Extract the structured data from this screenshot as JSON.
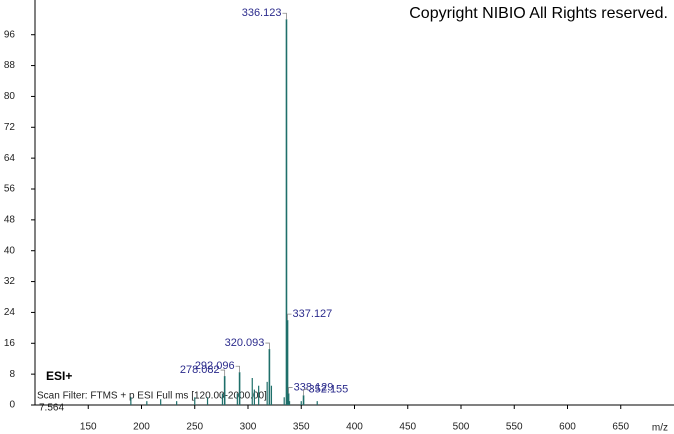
{
  "chart_data": {
    "type": "bar",
    "title": "Copyright NIBIO All Rights reserved.",
    "annotations": [
      "ESI+",
      "Scan Filter: FTMS + p ESI Full ms [120.00-2000.00]",
      "7.564"
    ],
    "x_label": "m/z",
    "color": "#1f6f6a",
    "label_color": "#2b2b8c",
    "x": [
      278.082,
      292.096,
      320.093,
      336.123,
      337.127,
      338.129,
      352.155
    ],
    "values": [
      7.5,
      8.5,
      14.5,
      100,
      22,
      3,
      2.5
    ],
    "minor_x": [
      190,
      205,
      218,
      233,
      250,
      262,
      276,
      290,
      304,
      306,
      310,
      318,
      322,
      334,
      339,
      350,
      365
    ],
    "minor_values": [
      2,
      1,
      1.5,
      1,
      2,
      2,
      3,
      3,
      7,
      4,
      5,
      6,
      5,
      2,
      1,
      1,
      1
    ],
    "xlim": [
      100,
      700
    ],
    "xticks": [
      150,
      200,
      250,
      300,
      350,
      400,
      450,
      500,
      550,
      600,
      650
    ],
    "ylim": [
      0,
      105
    ],
    "yticks": [
      0,
      8,
      16,
      24,
      32,
      40,
      48,
      56,
      64,
      72,
      80,
      88,
      96
    ]
  }
}
